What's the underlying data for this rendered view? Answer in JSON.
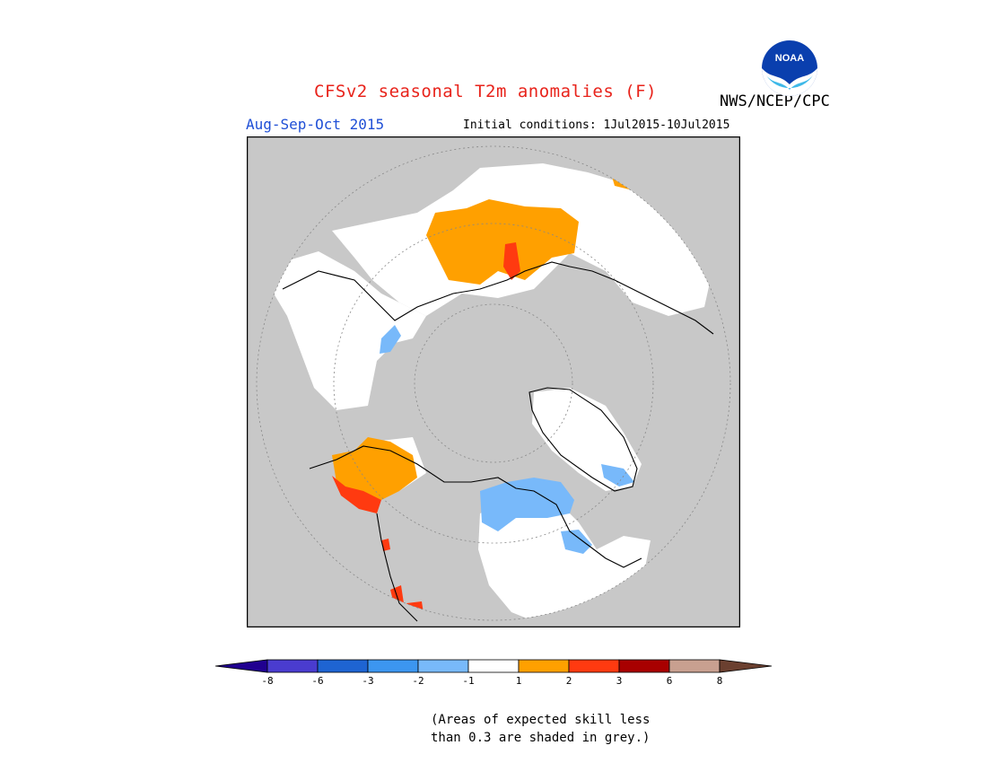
{
  "title": "CFSv2 seasonal T2m anomalies (F)",
  "agency": "NWS/NCEP/CPC",
  "logo_text": "NOAA",
  "period": "Aug-Sep-Oct 2015",
  "initial_conditions": "Initial conditions: 1Jul2015-10Jul2015",
  "colorbar": {
    "colors": [
      "#200090",
      "#4a3ccf",
      "#1e64d2",
      "#3c96f0",
      "#78b9fa",
      "#ffffff",
      "#ffa000",
      "#ff3a10",
      "#a80000",
      "#c8a090",
      "#6b4030"
    ],
    "tick_labels": [
      "-8",
      "-6",
      "-3",
      "-2",
      "-1",
      "1",
      "2",
      "3",
      "6",
      "8"
    ]
  },
  "note_line1": "(Areas of expected skill less",
  "note_line2": "than 0.3 are shaded in grey.)",
  "colors": {
    "skill_grey": "#c8c8c8",
    "title_red": "#e8231b",
    "period_blue": "#1f4fd6"
  }
}
